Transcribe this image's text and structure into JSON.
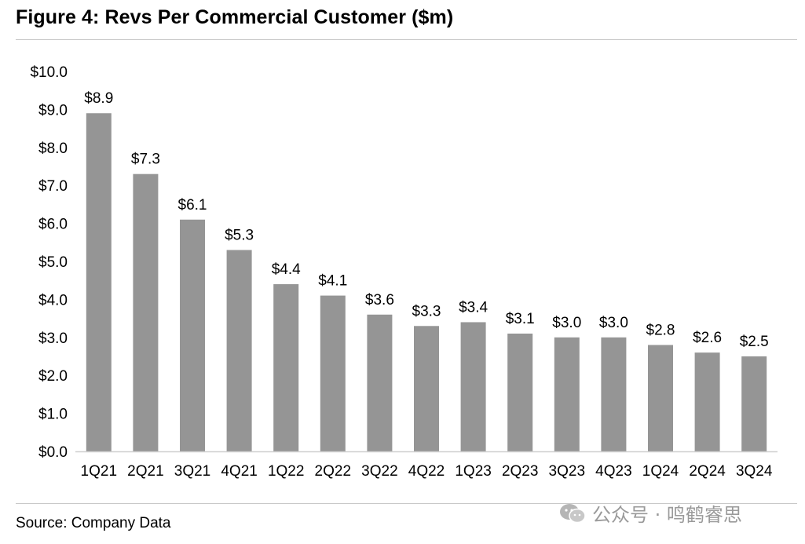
{
  "page": {
    "title": "Figure 4: Revs Per Commercial Customer ($m)",
    "source": "Source: Company Data",
    "watermark": "公众号 · 鸣鹤睿思"
  },
  "colors": {
    "bar": "#959595",
    "axis": "#d0d0d0",
    "text": "#000000"
  },
  "chart_data": {
    "type": "bar",
    "title": "Figure 4: Revs Per Commercial Customer ($m)",
    "xlabel": "",
    "ylabel": "",
    "ylim": [
      0,
      10
    ],
    "grid": false,
    "categories": [
      "1Q21",
      "2Q21",
      "3Q21",
      "4Q21",
      "1Q22",
      "2Q22",
      "3Q22",
      "4Q22",
      "1Q23",
      "2Q23",
      "3Q23",
      "4Q23",
      "1Q24",
      "2Q24",
      "3Q24"
    ],
    "values": [
      8.9,
      7.3,
      6.1,
      5.3,
      4.4,
      4.1,
      3.6,
      3.3,
      3.4,
      3.1,
      3.0,
      3.0,
      2.8,
      2.6,
      2.5
    ],
    "value_labels": [
      "$8.9",
      "$7.3",
      "$6.1",
      "$5.3",
      "$4.4",
      "$4.1",
      "$3.6",
      "$3.3",
      "$3.4",
      "$3.1",
      "$3.0",
      "$3.0",
      "$2.8",
      "$2.6",
      "$2.5"
    ],
    "y_ticks": [
      0,
      1,
      2,
      3,
      4,
      5,
      6,
      7,
      8,
      9,
      10
    ],
    "y_tick_labels": [
      "$0.0",
      "$1.0",
      "$2.0",
      "$3.0",
      "$4.0",
      "$5.0",
      "$6.0",
      "$7.0",
      "$8.0",
      "$9.0",
      "$10.0"
    ]
  }
}
